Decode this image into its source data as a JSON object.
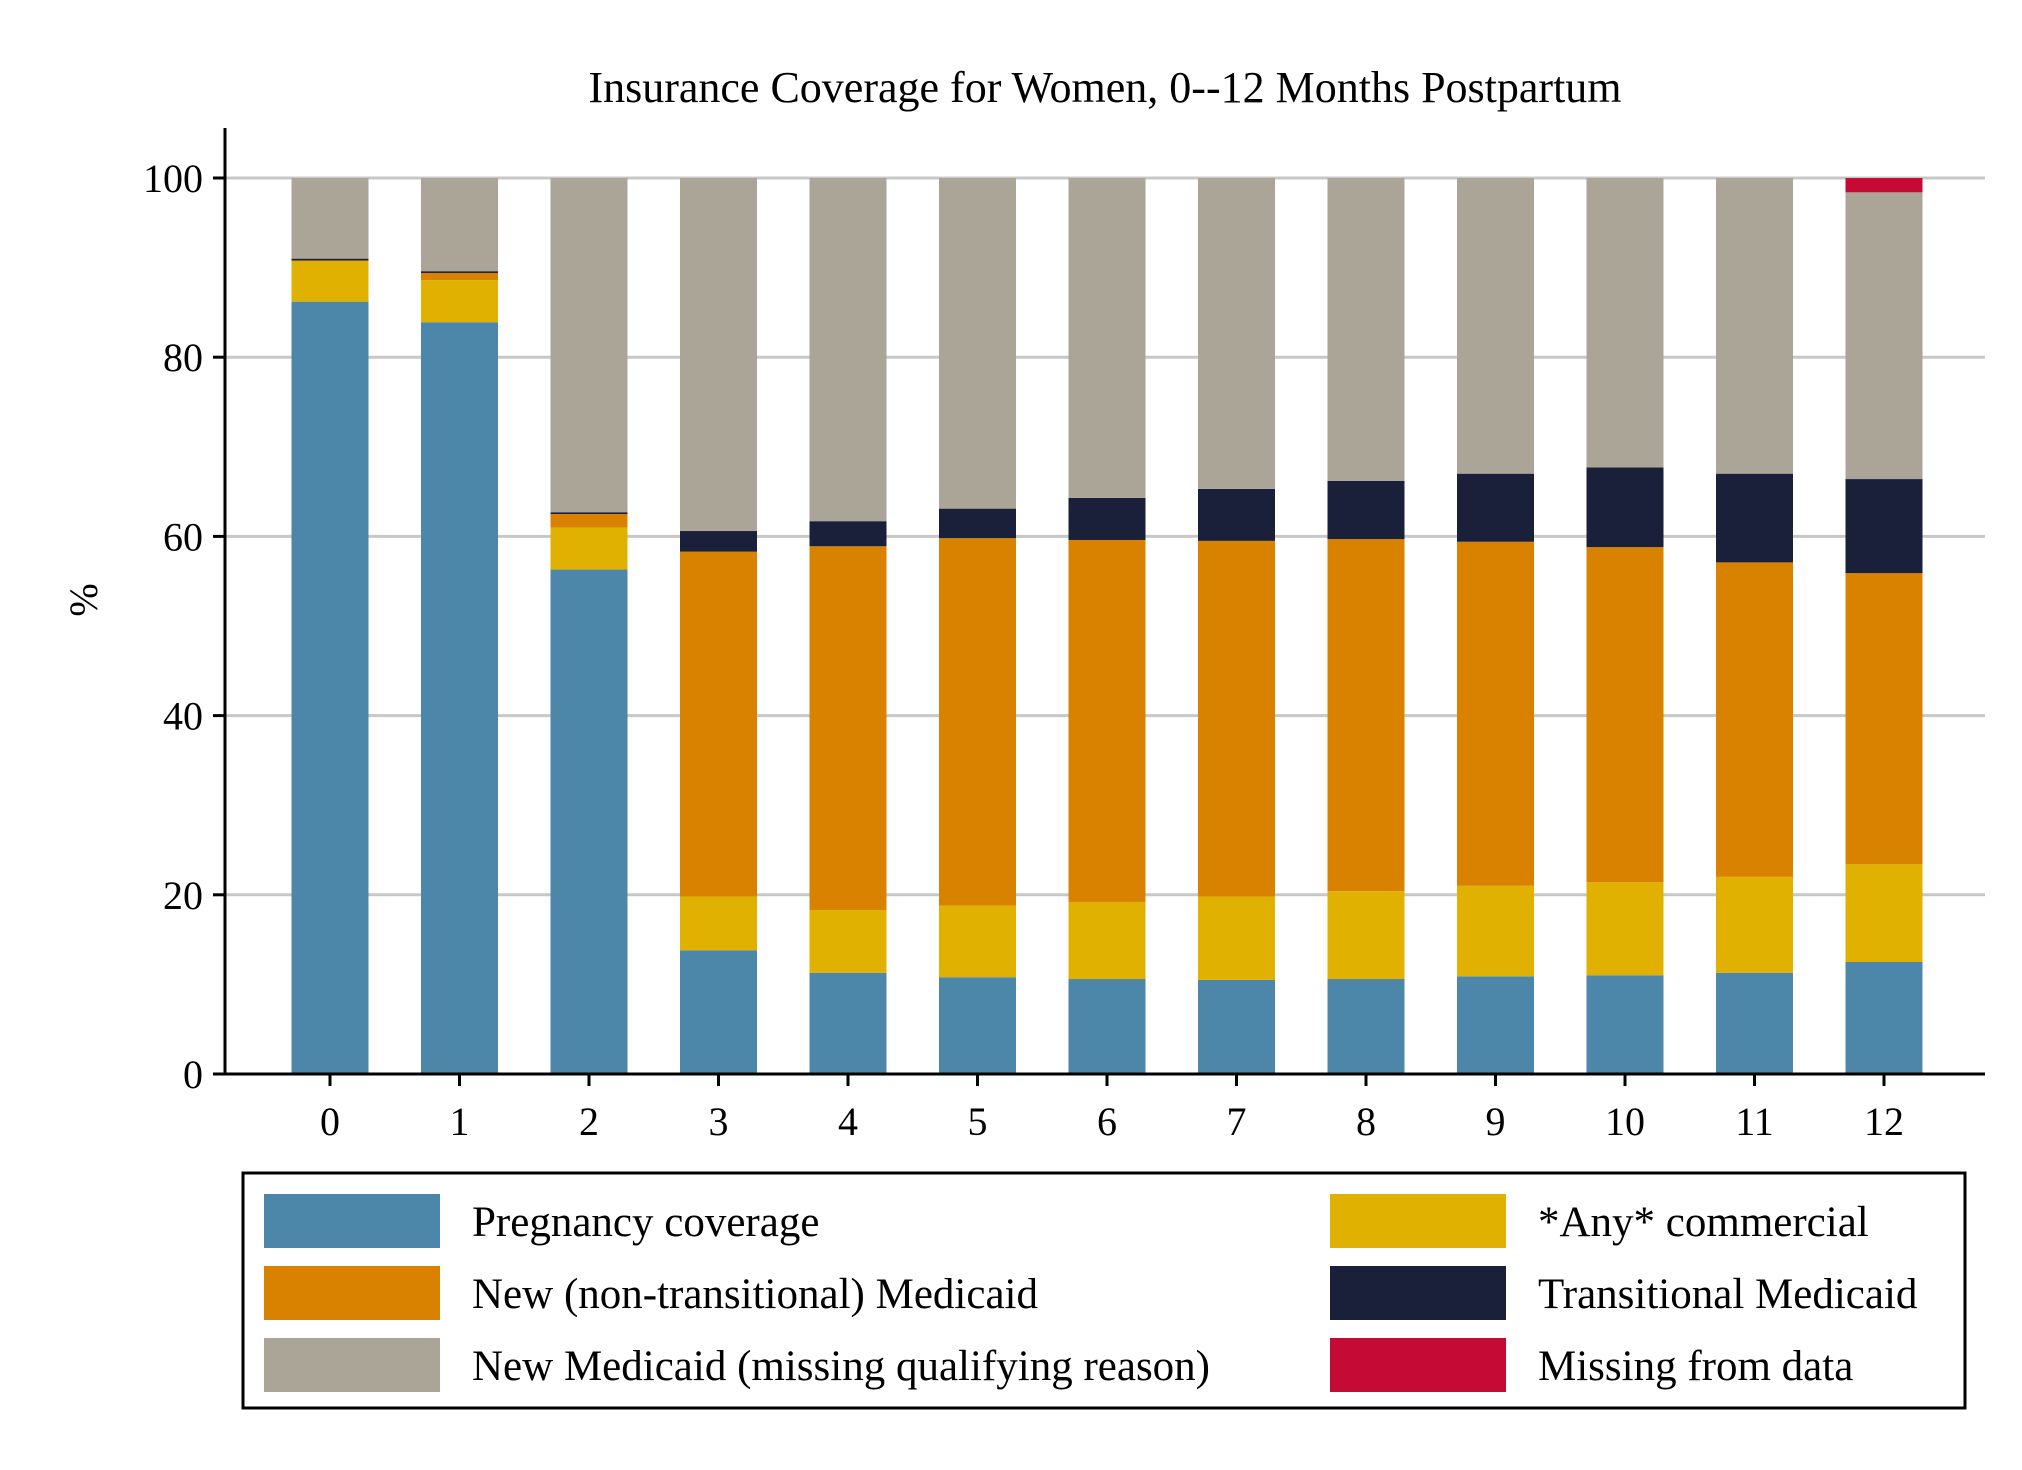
{
  "chart_data": {
    "type": "bar",
    "stacked": true,
    "title": "Insurance Coverage for Women, 0--12 Months Postpartum",
    "xlabel": "",
    "ylabel": "%",
    "ylim": [
      0,
      105
    ],
    "yticks": [
      0,
      20,
      40,
      60,
      80,
      100
    ],
    "grid": true,
    "legend_position": "bottom",
    "categories": [
      "0",
      "1",
      "2",
      "3",
      "4",
      "5",
      "6",
      "7",
      "8",
      "9",
      "10",
      "11",
      "12"
    ],
    "series": [
      {
        "name": "Pregnancy coverage",
        "color": "#4c86a9",
        "values": [
          86.2,
          83.9,
          56.3,
          13.8,
          11.3,
          10.8,
          10.6,
          10.5,
          10.6,
          10.9,
          11.0,
          11.3,
          12.5
        ]
      },
      {
        "name": "*Any* commercial",
        "color": "#e0b100",
        "values": [
          4.5,
          4.7,
          4.7,
          6.0,
          7.0,
          8.0,
          8.6,
          9.3,
          9.8,
          10.1,
          10.4,
          10.7,
          10.9
        ]
      },
      {
        "name": "New (non-transitional) Medicaid",
        "color": "#d98200",
        "values": [
          0.1,
          0.8,
          1.5,
          38.5,
          40.6,
          41.0,
          40.4,
          39.7,
          39.3,
          38.4,
          37.4,
          35.1,
          32.5
        ]
      },
      {
        "name": "Transitional Medicaid",
        "color": "#1a2039",
        "values": [
          0.2,
          0.2,
          0.2,
          2.3,
          2.8,
          3.3,
          4.7,
          5.8,
          6.5,
          7.6,
          8.9,
          9.9,
          10.5
        ]
      },
      {
        "name": "New Medicaid (missing qualifying reason)",
        "color": "#aaa597",
        "values": [
          9.0,
          10.4,
          37.3,
          39.4,
          38.3,
          36.9,
          35.7,
          34.7,
          33.8,
          33.0,
          32.3,
          33.0,
          32.0
        ]
      },
      {
        "name": "Missing from data",
        "color": "#c40a35",
        "values": [
          0,
          0,
          0,
          0,
          0,
          0,
          0,
          0,
          0,
          0,
          0,
          0,
          1.6
        ]
      }
    ],
    "legend_order": [
      "Pregnancy coverage",
      "*Any* commercial",
      "New (non-transitional) Medicaid",
      "Transitional Medicaid",
      "New Medicaid (missing qualifying reason)",
      "Missing from data"
    ]
  }
}
